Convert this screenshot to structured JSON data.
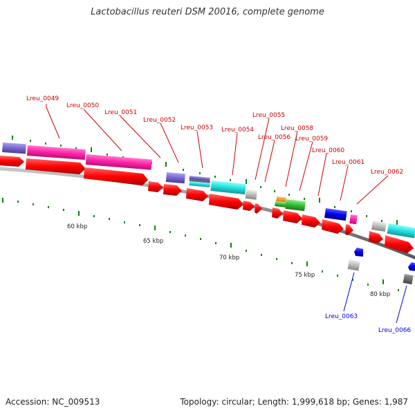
{
  "title": "Lactobacillus reuteri DSM 20016, complete genome",
  "footer": {
    "accession": "Accession: NC_009513",
    "topology": "Topology: circular; Length: 1,999,618 bp; Genes: 1,987"
  },
  "scale_labels": [
    "60 kbp",
    "65 kbp",
    "70 kbp",
    "75 kbp",
    "80 kbp"
  ],
  "gene_labels_top": [
    "Lreu_0049",
    "Lreu_0050",
    "Lreu_0051",
    "Lreu_0052",
    "Lreu_0053",
    "Lreu_0054",
    "Lreu_0055",
    "Lreu_0056",
    "Lreu_0058",
    "Lreu_0059",
    "Lreu_0060",
    "Lreu_0061",
    "Lreu_0062"
  ],
  "gene_labels_bottom": [
    "Lreu_0063",
    "Lreu_0066"
  ],
  "colors": {
    "forward_cds": "#ff0000",
    "label_forward": "#cc0000",
    "label_reverse": "#0000cc",
    "backbone": "#888888",
    "tick": "#008800",
    "pink": "#ff33aa",
    "purple": "#7766cc",
    "cyan": "#22dddd",
    "green": "#33bb33",
    "orange": "#ff8800",
    "blue": "#0000ee",
    "gray": "#bbbbbb"
  }
}
